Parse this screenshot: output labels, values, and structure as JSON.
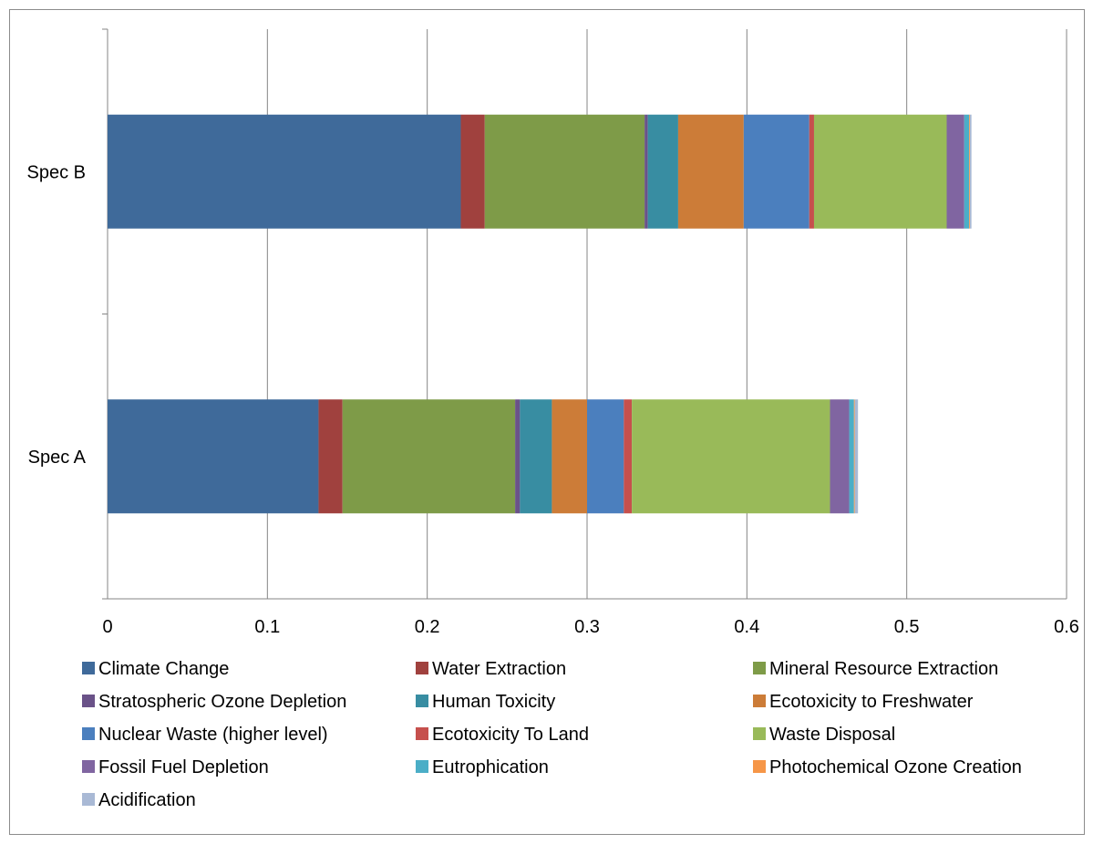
{
  "chart_data": {
    "type": "bar",
    "orientation": "horizontal",
    "stacked": true,
    "categories": [
      "Spec A",
      "Spec B"
    ],
    "xlim": [
      0,
      0.6
    ],
    "x_ticks": [
      "0",
      "0.1",
      "0.2",
      "0.3",
      "0.4",
      "0.5",
      "0.6"
    ],
    "x_tick_values": [
      0,
      0.1,
      0.2,
      0.3,
      0.4,
      0.5,
      0.6
    ],
    "grid": "vertical",
    "legend_position": "bottom",
    "title": "",
    "xlabel": "",
    "ylabel": "",
    "series": [
      {
        "name": "Climate Change",
        "color": "#3F6A9A",
        "values": [
          0.132,
          0.221
        ]
      },
      {
        "name": "Water Extraction",
        "color": "#A0413E",
        "values": [
          0.015,
          0.015
        ]
      },
      {
        "name": "Mineral Resource Extraction",
        "color": "#7E9B48",
        "values": [
          0.108,
          0.1
        ]
      },
      {
        "name": "Stratospheric Ozone Depletion",
        "color": "#6A5288",
        "values": [
          0.003,
          0.002
        ]
      },
      {
        "name": "Human Toxicity",
        "color": "#388DA2",
        "values": [
          0.02,
          0.019
        ]
      },
      {
        "name": "Ecotoxicity to Freshwater",
        "color": "#CC7C38",
        "values": [
          0.022,
          0.041
        ]
      },
      {
        "name": "Nuclear Waste (higher level)",
        "color": "#4B7FBE",
        "values": [
          0.023,
          0.041
        ]
      },
      {
        "name": "Ecotoxicity To Land",
        "color": "#C6504D",
        "values": [
          0.005,
          0.003
        ]
      },
      {
        "name": "Waste Disposal",
        "color": "#99BA59",
        "values": [
          0.124,
          0.083
        ]
      },
      {
        "name": "Fossil Fuel Depletion",
        "color": "#8065A1",
        "values": [
          0.012,
          0.011
        ]
      },
      {
        "name": "Eutrophication",
        "color": "#4BAEC7",
        "values": [
          0.003,
          0.003
        ]
      },
      {
        "name": "Photochemical Ozone Creation",
        "color": "#F69647",
        "values": [
          0.0005,
          0.0005
        ]
      },
      {
        "name": "Acidification",
        "color": "#A9B9D5",
        "values": [
          0.002,
          0.001
        ]
      }
    ]
  }
}
